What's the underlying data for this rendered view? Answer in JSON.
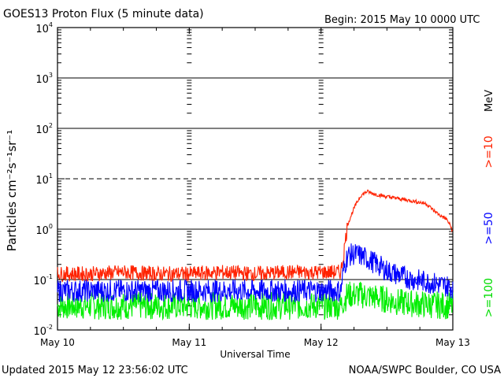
{
  "title": "GOES13 Proton Flux (5 minute data)",
  "begin": "Begin: 2015 May 10 0000 UTC",
  "updated": "Updated 2015 May 12 23:56:02 UTC",
  "credit": "NOAA/SWPC Boulder, CO USA",
  "chart_data": {
    "type": "line",
    "title": "GOES13 Proton Flux (5 minute data)",
    "xlabel": "Universal Time",
    "ylabel": "Particles cm⁻²s⁻¹sr⁻¹",
    "y_scale": "log",
    "ylim": [
      0.01,
      10000
    ],
    "y_ticks": [
      {
        "value": 0.01,
        "base": "10",
        "exp": "-2"
      },
      {
        "value": 0.1,
        "base": "10",
        "exp": "-1"
      },
      {
        "value": 1,
        "base": "10",
        "exp": "0"
      },
      {
        "value": 10,
        "base": "10",
        "exp": "1"
      },
      {
        "value": 100,
        "base": "10",
        "exp": "2"
      },
      {
        "value": 1000,
        "base": "10",
        "exp": "3"
      },
      {
        "value": 10000,
        "base": "10",
        "exp": "4"
      }
    ],
    "threshold_lines": [
      {
        "value": 10,
        "style": "dashed"
      },
      {
        "value": 1,
        "style": "solid"
      },
      {
        "value": 0.1,
        "style": "solid"
      },
      {
        "value": 100,
        "style": "solid"
      },
      {
        "value": 1000,
        "style": "solid"
      }
    ],
    "x_ticks": [
      "May 10",
      "May 11",
      "May 12",
      "May 13"
    ],
    "xlim": [
      0,
      3
    ],
    "x_units": "days since 2015 May 10 0000 UTC",
    "energy_label": "MeV",
    "series": [
      {
        "name": ">=10",
        "color": "#ff2200",
        "x": [
          0,
          0.25,
          0.5,
          0.75,
          1.0,
          1.25,
          1.5,
          1.75,
          2.0,
          2.15,
          2.17,
          2.2,
          2.25,
          2.3,
          2.35,
          2.4,
          2.5,
          2.6,
          2.7,
          2.8,
          2.85,
          2.9,
          2.95,
          2.98,
          3.0
        ],
        "y": [
          0.13,
          0.13,
          0.14,
          0.13,
          0.13,
          0.14,
          0.13,
          0.14,
          0.14,
          0.14,
          0.3,
          1.2,
          2.6,
          4.6,
          5.6,
          5.0,
          4.4,
          4.0,
          3.6,
          3.2,
          2.4,
          1.9,
          1.6,
          1.2,
          0.9
        ],
        "noise": 0.3
      },
      {
        "name": ">=50",
        "color": "#0000ff",
        "x": [
          0,
          0.25,
          0.5,
          0.75,
          1.0,
          1.25,
          1.5,
          1.75,
          2.0,
          2.15,
          2.17,
          2.2,
          2.25,
          2.3,
          2.4,
          2.5,
          2.6,
          2.7,
          2.8,
          2.9,
          3.0
        ],
        "y": [
          0.06,
          0.06,
          0.06,
          0.06,
          0.06,
          0.06,
          0.06,
          0.06,
          0.06,
          0.06,
          0.15,
          0.3,
          0.32,
          0.3,
          0.22,
          0.15,
          0.12,
          0.1,
          0.09,
          0.08,
          0.07
        ],
        "noise": 0.45
      },
      {
        "name": ">=100",
        "color": "#00ee00",
        "x": [
          0,
          0.5,
          1.0,
          1.5,
          2.0,
          2.15,
          2.2,
          2.3,
          2.4,
          2.5,
          2.6,
          2.8,
          3.0
        ],
        "y": [
          0.03,
          0.03,
          0.03,
          0.03,
          0.03,
          0.03,
          0.05,
          0.05,
          0.045,
          0.04,
          0.035,
          0.032,
          0.03
        ],
        "noise": 0.55
      }
    ]
  }
}
